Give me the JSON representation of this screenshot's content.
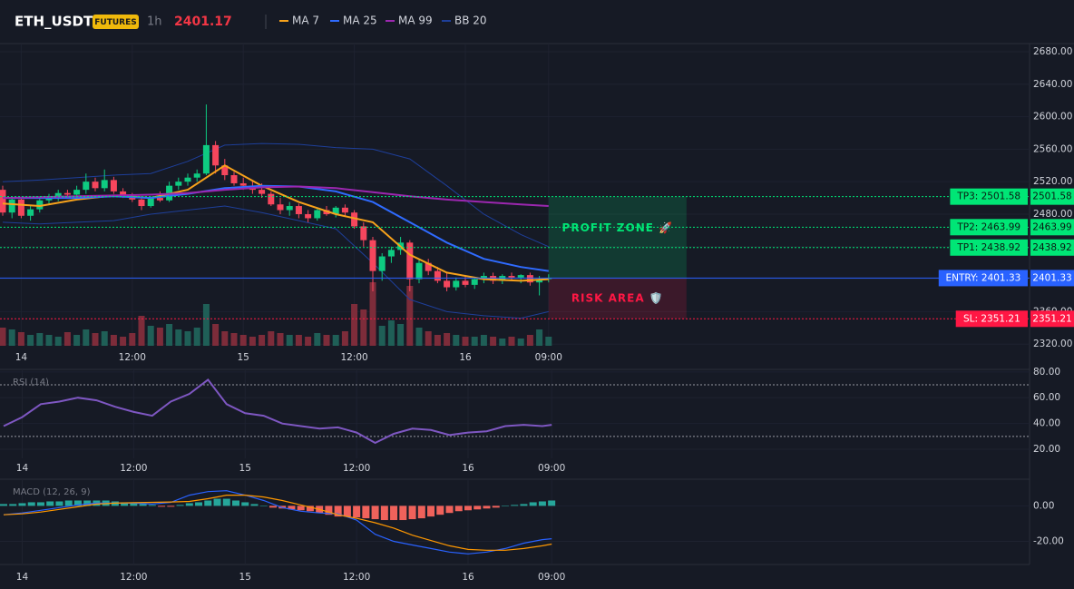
{
  "header": {
    "symbol": "ETH_USDT",
    "badge": "FUTURES",
    "interval": "1h",
    "price": "2401.17"
  },
  "chart_data": [
    {
      "type": "candlestick",
      "xticks": [
        {
          "value": 2,
          "label": "14"
        },
        {
          "value": 14,
          "label": "12:00"
        },
        {
          "value": 26,
          "label": "15"
        },
        {
          "value": 38,
          "label": "12:00"
        },
        {
          "value": 50,
          "label": "16"
        },
        {
          "value": 59,
          "label": "09:00"
        }
      ],
      "ylim": [
        2318,
        2690
      ],
      "yticks": [
        {
          "value": 2320,
          "label": "2320.00"
        },
        {
          "value": 2360,
          "label": "2360.00"
        },
        {
          "value": 2400,
          "label": "2400.00"
        },
        {
          "value": 2440,
          "label": "2440.00"
        },
        {
          "value": 2480,
          "label": "2480.00"
        },
        {
          "value": 2520,
          "label": "2520.00"
        },
        {
          "value": 2560,
          "label": "2560.00"
        },
        {
          "value": 2600,
          "label": "2600.00"
        },
        {
          "value": 2640,
          "label": "2640.00"
        },
        {
          "value": 2680,
          "label": "2680.00"
        }
      ],
      "open": [
        2510,
        2482,
        2498,
        2478,
        2486,
        2497,
        2500,
        2506,
        2504,
        2510,
        2520,
        2512,
        2522,
        2508,
        2502,
        2498,
        2490,
        2500,
        2497,
        2515,
        2520,
        2525,
        2530,
        2565,
        2540,
        2528,
        2518,
        2515,
        2510,
        2505,
        2492,
        2485,
        2490,
        2480,
        2475,
        2485,
        2480,
        2488,
        2482,
        2465,
        2448,
        2410,
        2428,
        2436,
        2445,
        2400,
        2420,
        2410,
        2398,
        2390,
        2398,
        2393,
        2400,
        2404,
        2398,
        2404,
        2402,
        2405,
        2396,
        2400
      ],
      "high": [
        2515,
        2500,
        2500,
        2490,
        2500,
        2505,
        2510,
        2510,
        2515,
        2530,
        2525,
        2535,
        2526,
        2512,
        2506,
        2502,
        2502,
        2508,
        2520,
        2525,
        2530,
        2535,
        2615,
        2570,
        2548,
        2532,
        2525,
        2522,
        2518,
        2508,
        2500,
        2495,
        2493,
        2485,
        2488,
        2490,
        2490,
        2492,
        2485,
        2470,
        2452,
        2432,
        2440,
        2452,
        2448,
        2425,
        2425,
        2415,
        2408,
        2402,
        2405,
        2402,
        2408,
        2408,
        2406,
        2408,
        2406,
        2408,
        2404,
        2406
      ],
      "low": [
        2478,
        2475,
        2475,
        2472,
        2482,
        2492,
        2496,
        2500,
        2500,
        2505,
        2508,
        2508,
        2505,
        2500,
        2495,
        2485,
        2488,
        2495,
        2495,
        2510,
        2515,
        2520,
        2528,
        2530,
        2522,
        2515,
        2510,
        2505,
        2500,
        2490,
        2480,
        2478,
        2475,
        2470,
        2472,
        2478,
        2476,
        2478,
        2462,
        2440,
        2385,
        2398,
        2420,
        2430,
        2385,
        2395,
        2405,
        2395,
        2385,
        2386,
        2390,
        2388,
        2395,
        2394,
        2394,
        2398,
        2395,
        2392,
        2380,
        2396
      ],
      "close": [
        2482,
        2498,
        2478,
        2486,
        2497,
        2500,
        2506,
        2504,
        2510,
        2520,
        2512,
        2522,
        2508,
        2502,
        2498,
        2490,
        2500,
        2497,
        2515,
        2520,
        2525,
        2530,
        2565,
        2540,
        2528,
        2518,
        2515,
        2510,
        2505,
        2492,
        2485,
        2490,
        2480,
        2475,
        2485,
        2480,
        2488,
        2482,
        2465,
        2448,
        2410,
        2428,
        2436,
        2445,
        2400,
        2420,
        2410,
        2398,
        2390,
        2398,
        2393,
        2400,
        2404,
        2398,
        2404,
        2402,
        2405,
        2396,
        2400,
        2401.17
      ],
      "volume": [
        20,
        18,
        15,
        12,
        14,
        12,
        10,
        15,
        12,
        18,
        14,
        16,
        12,
        10,
        14,
        33,
        22,
        20,
        24,
        18,
        16,
        20,
        46,
        24,
        16,
        14,
        12,
        10,
        12,
        16,
        14,
        12,
        12,
        10,
        14,
        12,
        12,
        16,
        46,
        40,
        70,
        22,
        28,
        24,
        66,
        20,
        16,
        12,
        14,
        12,
        10,
        10,
        12,
        10,
        8,
        10,
        8,
        12,
        18,
        10
      ],
      "up_color": "#0ecb81",
      "down_color": "#f6465d",
      "volume_up_color": "#1f5f57",
      "volume_down_color": "#7d2c3a",
      "line_x": [
        0,
        4,
        8,
        12,
        16,
        20,
        24,
        28,
        32,
        36,
        40,
        44,
        48,
        52,
        56,
        59
      ],
      "series": [
        {
          "name": "MA 7",
          "color": "#f7a21b",
          "values": [
            2493,
            2490,
            2498,
            2503,
            2500,
            2510,
            2540,
            2515,
            2495,
            2480,
            2470,
            2430,
            2408,
            2400,
            2398,
            2400
          ]
        },
        {
          "name": "MA 25",
          "color": "#2f6bff",
          "values": [
            2500,
            2500,
            2500,
            2502,
            2500,
            2505,
            2512,
            2515,
            2514,
            2508,
            2495,
            2470,
            2445,
            2425,
            2415,
            2410
          ]
        },
        {
          "name": "MA 99",
          "color": "#9c27b0",
          "values": [
            2500,
            2501,
            2502,
            2503,
            2504,
            2506,
            2510,
            2513,
            2514,
            2512,
            2507,
            2502,
            2498,
            2495,
            2492,
            2490
          ]
        },
        {
          "name": "BB 20",
          "color": "#1e3f9a",
          "upper": [
            2520,
            2522,
            2525,
            2528,
            2530,
            2545,
            2565,
            2567,
            2566,
            2562,
            2560,
            2548,
            2515,
            2480,
            2455,
            2440
          ],
          "lower": [
            2470,
            2468,
            2470,
            2472,
            2480,
            2485,
            2490,
            2482,
            2472,
            2462,
            2420,
            2375,
            2360,
            2355,
            2352,
            2360
          ]
        }
      ],
      "levels": [
        {
          "label": "TP3: 2501.58",
          "value": 2501.58,
          "color": "#00e676"
        },
        {
          "label": "TP2: 2463.99",
          "value": 2463.99,
          "color": "#00e676"
        },
        {
          "label": "TP1: 2438.92",
          "value": 2438.92,
          "color": "#00e676"
        },
        {
          "label": "ENTRY: 2401.33",
          "value": 2401.33,
          "color": "#2962ff"
        },
        {
          "label": "SL: 2351.21",
          "value": 2351.21,
          "color": "#ff1744"
        }
      ],
      "zones": [
        {
          "label": "PROFIT ZONE 🚀",
          "color": "#00e676"
        },
        {
          "label": "RISK AREA 🛡️",
          "color": "#ff1744"
        }
      ]
    },
    {
      "type": "line",
      "title": "RSI (14)",
      "color": "#7e57c2",
      "xticks": [
        {
          "value": 2,
          "label": "14"
        },
        {
          "value": 14,
          "label": "12:00"
        },
        {
          "value": 26,
          "label": "15"
        },
        {
          "value": 38,
          "label": "12:00"
        },
        {
          "value": 50,
          "label": "16"
        },
        {
          "value": 59,
          "label": "09:00"
        }
      ],
      "ylim": [
        13,
        82
      ],
      "yticks": [
        {
          "value": 20,
          "label": "20.00"
        },
        {
          "value": 40,
          "label": "40.00"
        },
        {
          "value": 60,
          "label": "60.00"
        },
        {
          "value": 80,
          "label": "80.00"
        }
      ],
      "bands": [
        70,
        30
      ],
      "x": [
        0,
        2,
        4,
        6,
        8,
        10,
        12,
        14,
        16,
        18,
        20,
        22,
        24,
        26,
        28,
        30,
        32,
        34,
        36,
        38,
        40,
        42,
        44,
        46,
        48,
        50,
        52,
        54,
        56,
        58,
        59
      ],
      "values": [
        38,
        45,
        55,
        57,
        60,
        58,
        53,
        49,
        46,
        57,
        63,
        74,
        55,
        48,
        46,
        40,
        38,
        36,
        37,
        33,
        25,
        32,
        36,
        35,
        31,
        33,
        34,
        38,
        39,
        38,
        39
      ]
    },
    {
      "type": "macd",
      "title": "MACD (12, 26, 9)",
      "xticks": [
        {
          "value": 2,
          "label": "14"
        },
        {
          "value": 14,
          "label": "12:00"
        },
        {
          "value": 26,
          "label": "15"
        },
        {
          "value": 38,
          "label": "12:00"
        },
        {
          "value": 50,
          "label": "16"
        },
        {
          "value": 59,
          "label": "09:00"
        }
      ],
      "ylim": [
        -33,
        15
      ],
      "yticks": [
        {
          "value": -20,
          "label": "-20.00"
        },
        {
          "value": 0,
          "label": "0.00"
        }
      ],
      "histogram": [
        1,
        1,
        1.5,
        2,
        2,
        2.5,
        2.5,
        3,
        3,
        3,
        3,
        3,
        2.5,
        2,
        1.5,
        1,
        0.5,
        -0.5,
        -0.5,
        0.5,
        1.5,
        2,
        3,
        4,
        4,
        3,
        2,
        1,
        0,
        -1,
        -1.5,
        -2,
        -2.5,
        -3,
        -4,
        -5,
        -6,
        -6,
        -6.5,
        -7,
        -7.5,
        -8,
        -8,
        -8,
        -7.5,
        -7,
        -6,
        -5,
        -4,
        -3,
        -2.5,
        -2,
        -1.5,
        -1,
        0,
        0.5,
        1,
        2,
        2.5,
        3
      ],
      "up_color": "#26a69a",
      "down_color": "#f0625b",
      "x": [
        0,
        2,
        4,
        6,
        8,
        10,
        12,
        14,
        16,
        18,
        20,
        22,
        24,
        26,
        28,
        30,
        32,
        34,
        36,
        38,
        40,
        42,
        44,
        46,
        48,
        50,
        52,
        54,
        56,
        58,
        59
      ],
      "macd": [
        -5,
        -4,
        -2.5,
        -1,
        0.5,
        1.5,
        1.5,
        1.5,
        1,
        2,
        6,
        8,
        8.5,
        6,
        3,
        -1,
        -3,
        -4,
        -4.5,
        -8,
        -16,
        -20,
        -22,
        -24,
        -26,
        -27,
        -26,
        -24,
        -21,
        -19,
        -18.5
      ],
      "signal": [
        -5,
        -4.5,
        -3.5,
        -2,
        -0.5,
        1,
        1.5,
        1.8,
        2,
        2.2,
        2.5,
        4,
        6,
        6,
        5,
        3,
        0.5,
        -2,
        -5,
        -7,
        -9.5,
        -12.5,
        -16.5,
        -19.5,
        -22.5,
        -24.5,
        -25,
        -25,
        -24,
        -22.5,
        -21.5
      ],
      "macd_color": "#2962ff",
      "signal_color": "#ff9800"
    }
  ]
}
